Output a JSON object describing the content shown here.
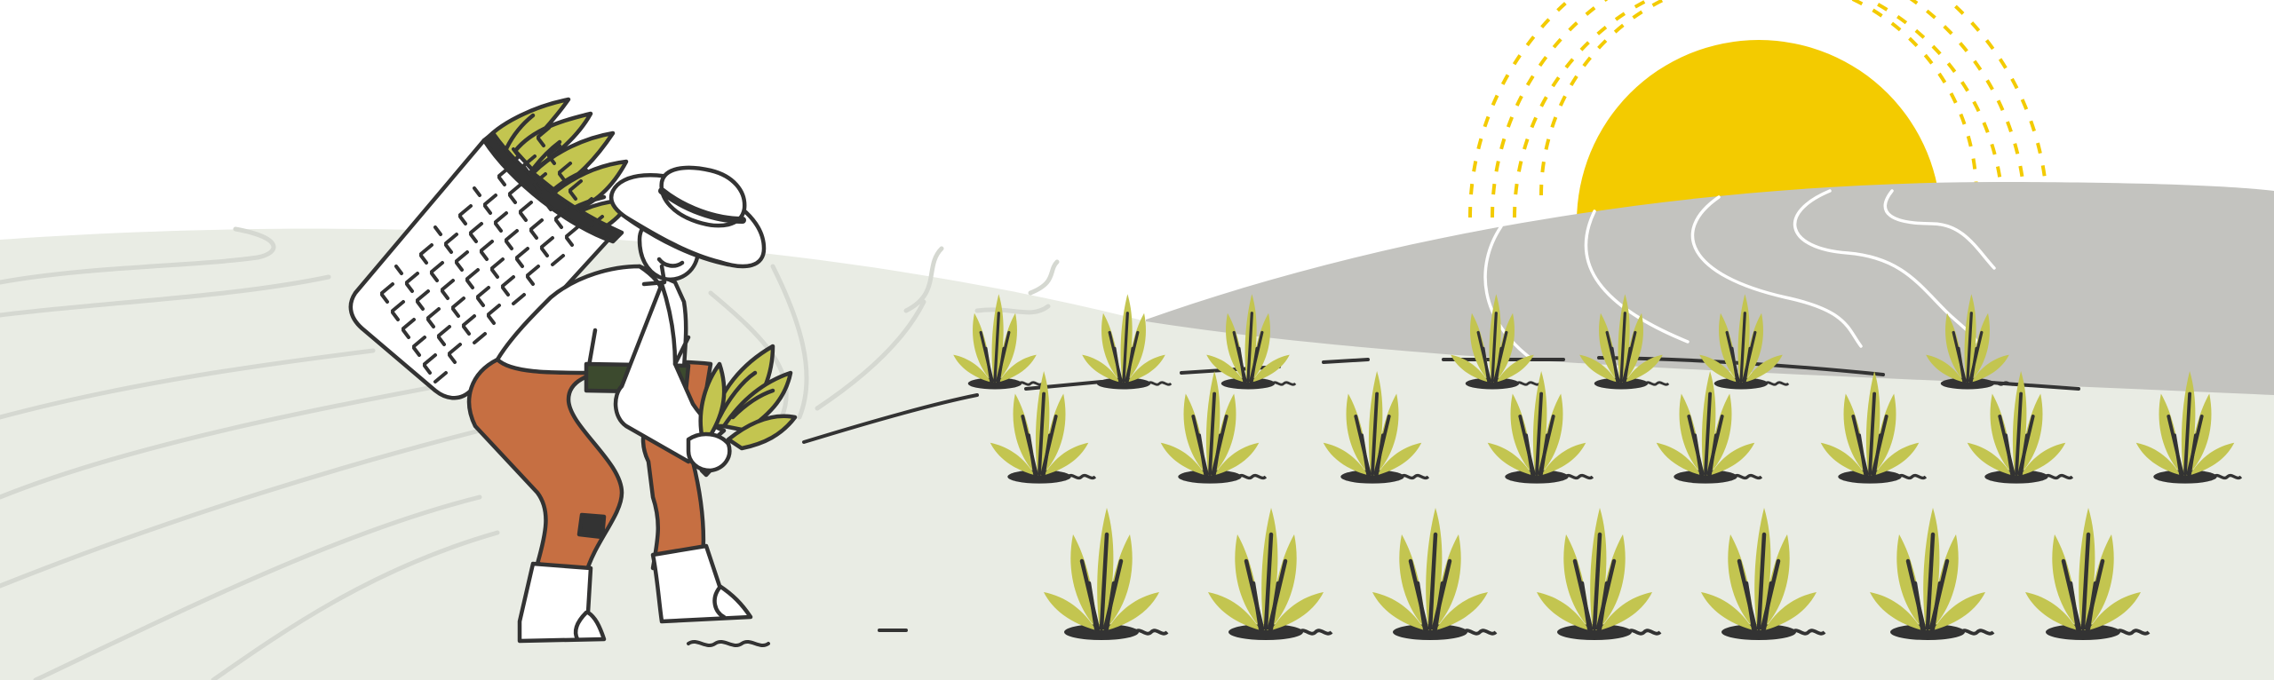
{
  "illustration": {
    "subject": "farmer-planting-rice-seedlings",
    "colors": {
      "sky": "#ffffff",
      "field": "#e9ece4",
      "field_lines": "#d5d8d1",
      "hill": "#c3c3bf",
      "hill_lines": "#ffffff",
      "sun": "#f3cb00",
      "sun_rays": "#f3cb00",
      "seedling": "#c3c550",
      "seedling_dark": "#a6a83a",
      "outline": "#333333",
      "pants": "#c66f42",
      "belt": "#3c4a2e",
      "boots": "#ffffff",
      "shirt": "#ffffff",
      "mud": "#333333"
    },
    "seedling_rows": [
      {
        "row": "back",
        "count": 10
      },
      {
        "row": "middle",
        "count": 11
      },
      {
        "row": "front",
        "count": 7
      }
    ]
  }
}
